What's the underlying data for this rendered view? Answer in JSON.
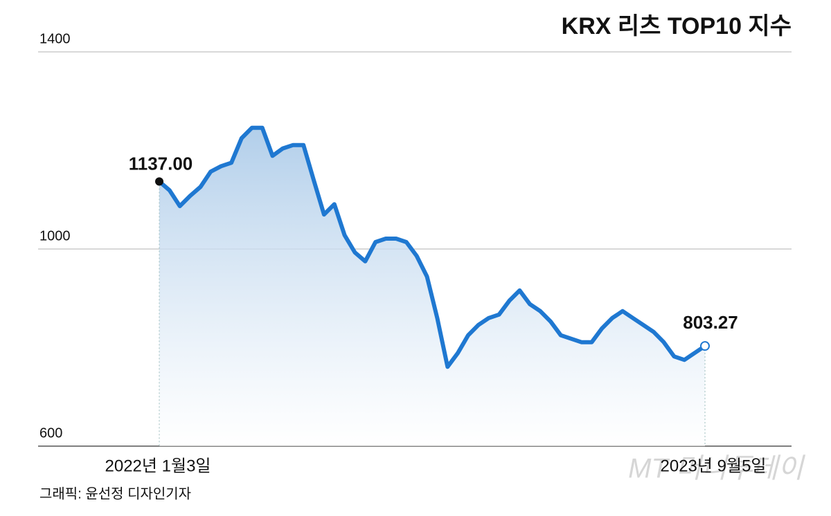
{
  "chart_data": {
    "type": "line",
    "title": "KRX 리츠 TOP10 지수",
    "categories": [
      "2022년 1월3일",
      null,
      null,
      null,
      null,
      null,
      null,
      null,
      null,
      null,
      null,
      null,
      null,
      null,
      null,
      null,
      null,
      null,
      null,
      null,
      null,
      null,
      null,
      null,
      null,
      null,
      null,
      null,
      null,
      null,
      null,
      null,
      null,
      null,
      null,
      null,
      null,
      null,
      null,
      null,
      null,
      null,
      null,
      null,
      null,
      null,
      null,
      null,
      null,
      null,
      null,
      null,
      null,
      "2023년 9월5일"
    ],
    "values": [
      1137,
      1119,
      1087,
      1108,
      1126,
      1157,
      1168,
      1175,
      1225,
      1246,
      1246,
      1189,
      1204,
      1211,
      1211,
      1140,
      1070,
      1091,
      1028,
      993,
      975,
      1014,
      1021,
      1021,
      1014,
      986,
      944,
      860,
      761,
      789,
      825,
      846,
      860,
      867,
      895,
      916,
      888,
      874,
      853,
      825,
      818,
      811,
      811,
      839,
      860,
      874,
      860,
      846,
      832,
      811,
      782,
      775,
      789,
      803.27
    ],
    "value_labels": [
      "1137.00",
      null,
      null,
      null,
      null,
      null,
      null,
      null,
      null,
      null,
      null,
      null,
      null,
      null,
      null,
      null,
      null,
      null,
      null,
      null,
      null,
      null,
      null,
      null,
      null,
      null,
      null,
      null,
      null,
      null,
      null,
      null,
      null,
      null,
      null,
      null,
      null,
      null,
      null,
      null,
      null,
      null,
      null,
      null,
      null,
      null,
      null,
      null,
      null,
      null,
      null,
      null,
      null,
      "803.27"
    ],
    "color": "#1f78d1",
    "ylim": [
      600,
      1400
    ],
    "yticks": [
      600,
      1000,
      1400
    ],
    "grid": true,
    "credit": "그래픽: 윤선정 디자인기자",
    "watermark": "MT 머니투데이"
  }
}
